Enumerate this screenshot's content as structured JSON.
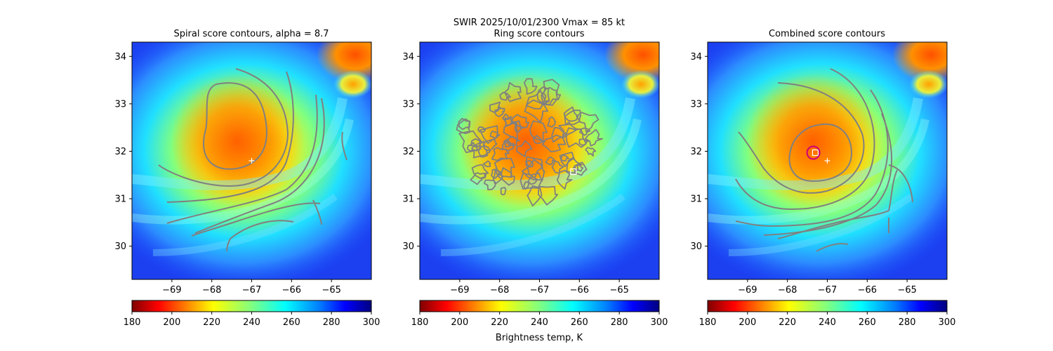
{
  "figure": {
    "suptitle_line1": "SWIR  2025/10/01/2300    Vmax = 85 kt",
    "colorbar_label": "Brightness temp, K"
  },
  "chart_data": [
    {
      "type": "heatmap",
      "title": "Spiral score contours, alpha =  8.7",
      "xlabel": "",
      "ylabel": "",
      "xlim": [
        -70,
        -64
      ],
      "ylim": [
        29.3,
        34.3
      ],
      "xticks": [
        -69,
        -68,
        -67,
        -66,
        -65
      ],
      "yticks": [
        30,
        31,
        32,
        33,
        34
      ],
      "markers": [
        {
          "symbol": "plus",
          "lon": -67.0,
          "lat": 31.8,
          "color": "#ffffff"
        }
      ],
      "contours": "spiral",
      "colorbar": {
        "min": 180,
        "max": 300,
        "ticks": [
          180,
          200,
          220,
          240,
          260,
          280,
          300
        ],
        "colormap": "jet_r"
      }
    },
    {
      "type": "heatmap",
      "title": "Ring score contours",
      "xlabel": "",
      "ylabel": "",
      "xlim": [
        -70,
        -64
      ],
      "ylim": [
        29.3,
        34.3
      ],
      "xticks": [
        -69,
        -68,
        -67,
        -66,
        -65
      ],
      "yticks": [
        30,
        31,
        32,
        33,
        34
      ],
      "markers": [
        {
          "symbol": "square",
          "lon": -66.15,
          "lat": 31.57,
          "color": "#ffffff"
        }
      ],
      "contours": "ring",
      "colorbar": {
        "min": 180,
        "max": 300,
        "ticks": [
          180,
          200,
          220,
          240,
          260,
          280,
          300
        ],
        "colormap": "jet_r"
      }
    },
    {
      "type": "heatmap",
      "title": "Combined score contours",
      "xlabel": "",
      "ylabel": "",
      "xlim": [
        -70,
        -64
      ],
      "ylim": [
        29.3,
        34.3
      ],
      "xticks": [
        -69,
        -68,
        -67,
        -66,
        -65
      ],
      "yticks": [
        30,
        31,
        32,
        33,
        34
      ],
      "markers": [
        {
          "symbol": "plus",
          "lon": -67.0,
          "lat": 31.8,
          "color": "#ffffff"
        },
        {
          "symbol": "square",
          "lon": -67.3,
          "lat": 31.97,
          "color": "#ffffff"
        },
        {
          "symbol": "circle",
          "lon": -67.35,
          "lat": 31.97,
          "color": "#cc0077"
        }
      ],
      "contours": "combined",
      "colorbar": {
        "min": 180,
        "max": 300,
        "ticks": [
          180,
          200,
          220,
          240,
          260,
          280,
          300
        ],
        "colormap": "jet_r"
      }
    }
  ]
}
